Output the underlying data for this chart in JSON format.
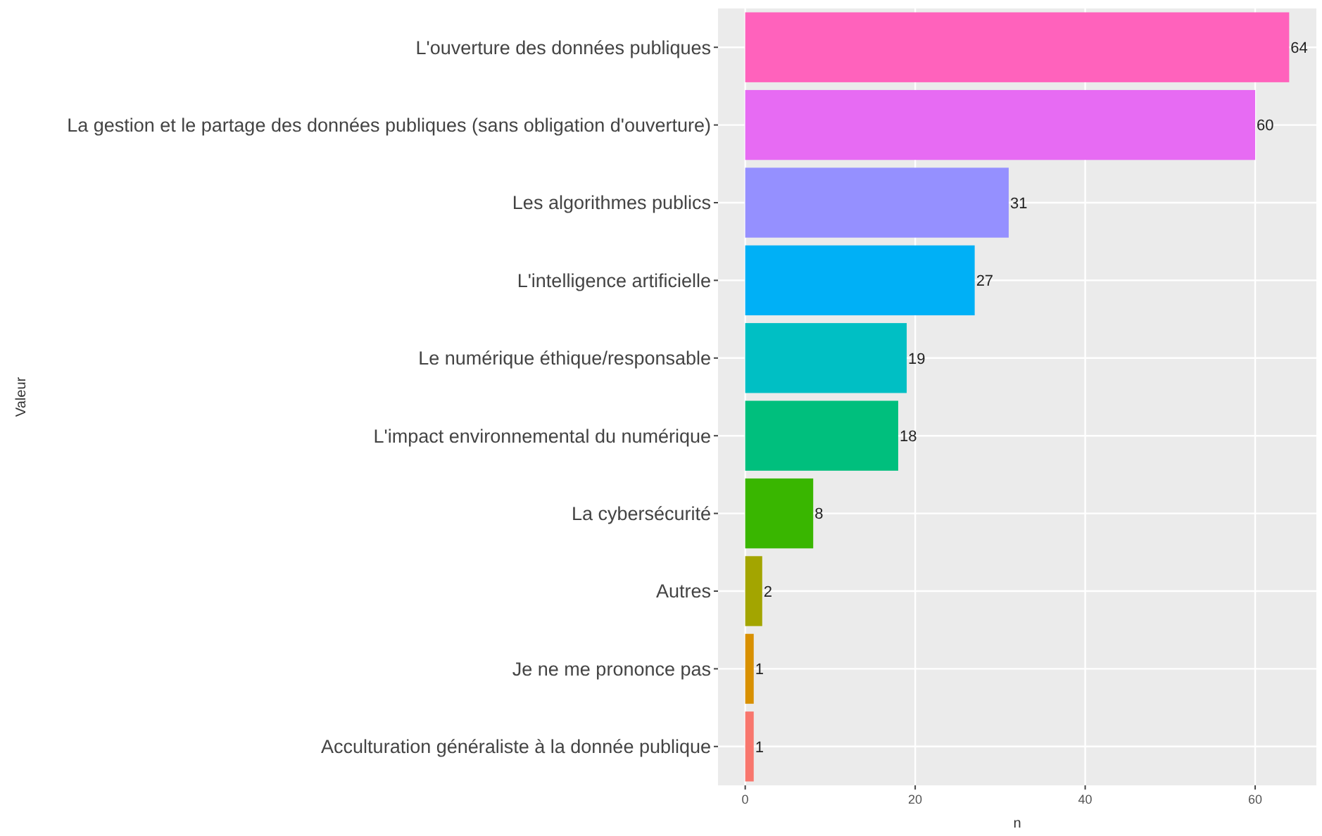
{
  "chart_data": {
    "type": "bar",
    "orientation": "horizontal",
    "xlabel": "n",
    "ylabel": "Valeur",
    "categories": [
      "L'ouverture des données publiques",
      "La gestion et le partage des données publiques (sans obligation d'ouverture)",
      "Les algorithmes publics",
      "L'intelligence artificielle",
      "Le numérique éthique/responsable",
      "L'impact environnemental du numérique",
      "La cybersécurité",
      "Autres",
      "Je ne me prononce pas",
      "Acculturation généraliste à la donnée publique"
    ],
    "values": [
      64,
      60,
      31,
      27,
      19,
      18,
      8,
      2,
      1,
      1
    ],
    "colors": [
      "#ff62bc",
      "#e76bf3",
      "#9590ff",
      "#00b0f6",
      "#00bfc4",
      "#00bf7d",
      "#39b600",
      "#a3a500",
      "#d89000",
      "#f8766d"
    ],
    "xlim": [
      -3.2,
      67.2
    ],
    "xticks": [
      0,
      20,
      40,
      60
    ],
    "grid": true,
    "data_labels": true
  }
}
